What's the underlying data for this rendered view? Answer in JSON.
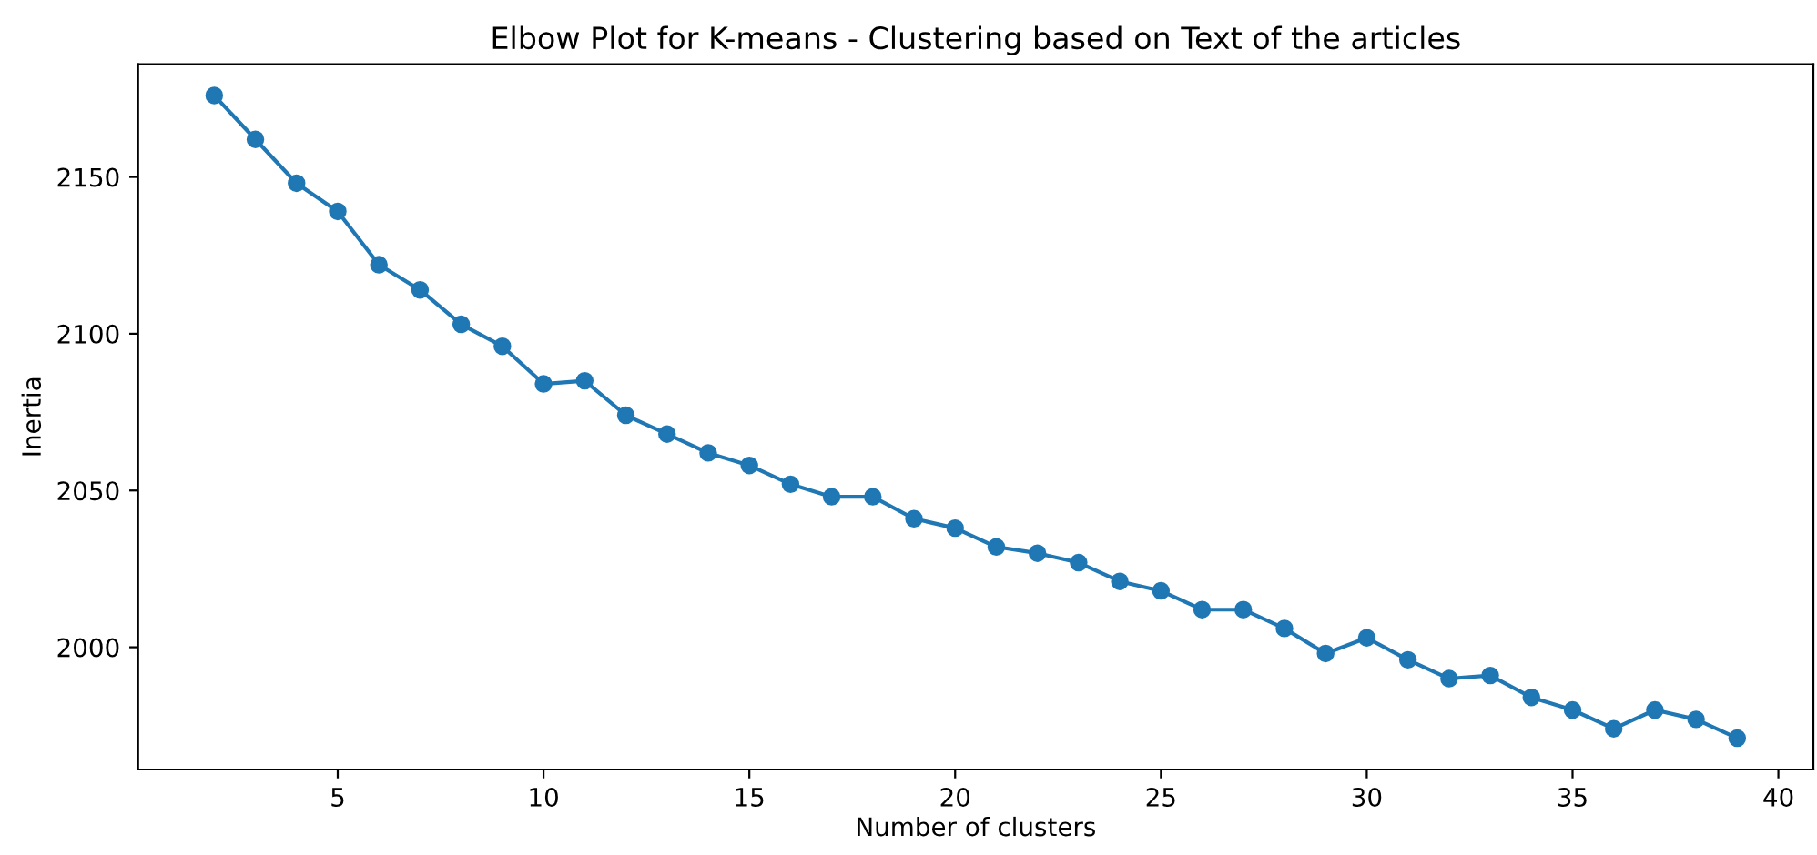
{
  "chart_data": {
    "type": "line",
    "title": "Elbow Plot for K-means - Clustering based on Text of the articles",
    "xlabel": "Number of clusters",
    "ylabel": "Inertia",
    "x": [
      2,
      3,
      4,
      5,
      6,
      7,
      8,
      9,
      10,
      11,
      12,
      13,
      14,
      15,
      16,
      17,
      18,
      19,
      20,
      21,
      22,
      23,
      24,
      25,
      26,
      27,
      28,
      29,
      30,
      31,
      32,
      33,
      34,
      35,
      36,
      37,
      38,
      39
    ],
    "series": [
      {
        "color": "#1f77b4",
        "values": [
          2176,
          2162,
          2148,
          2139,
          2122,
          2114,
          2103,
          2096,
          2084,
          2085,
          2074,
          2068,
          2062,
          2058,
          2052,
          2048,
          2048,
          2041,
          2038,
          2032,
          2030,
          2027,
          2021,
          2018,
          2012,
          2012,
          2006,
          1998,
          2003,
          1996,
          1990,
          1991,
          1984,
          1980,
          1974,
          1980,
          1977,
          1971
        ]
      }
    ],
    "xlim": [
      0.15,
      40.85
    ],
    "ylim": [
      1961,
      2186
    ],
    "xticks": [
      5,
      10,
      15,
      20,
      25,
      30,
      35,
      40
    ],
    "yticks": [
      2000,
      2050,
      2100,
      2150
    ],
    "marker": "circle",
    "line_style": "solid",
    "grid": false,
    "legend": false
  }
}
